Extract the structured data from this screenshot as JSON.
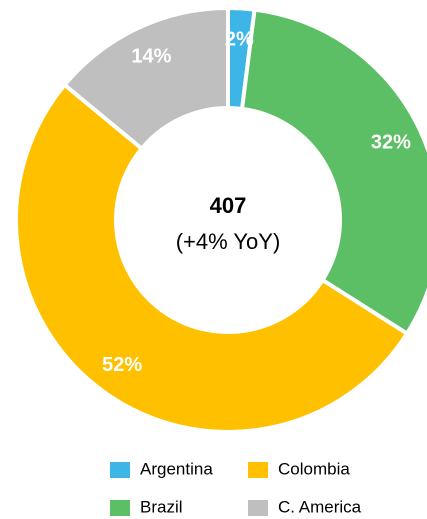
{
  "chart_data": {
    "type": "donut",
    "center_value": "407",
    "center_subtitle": "(+4% YoY)",
    "categories": [
      "Argentina",
      "Brazil",
      "Colombia",
      "C. America"
    ],
    "values": [
      2,
      32,
      52,
      14
    ],
    "value_labels": [
      "2%",
      "32%",
      "52%",
      "14%"
    ],
    "colors": [
      "#3db5e6",
      "#5dbf65",
      "#ffc000",
      "#bfbfbf"
    ],
    "legend_order": [
      0,
      2,
      1,
      3
    ]
  }
}
